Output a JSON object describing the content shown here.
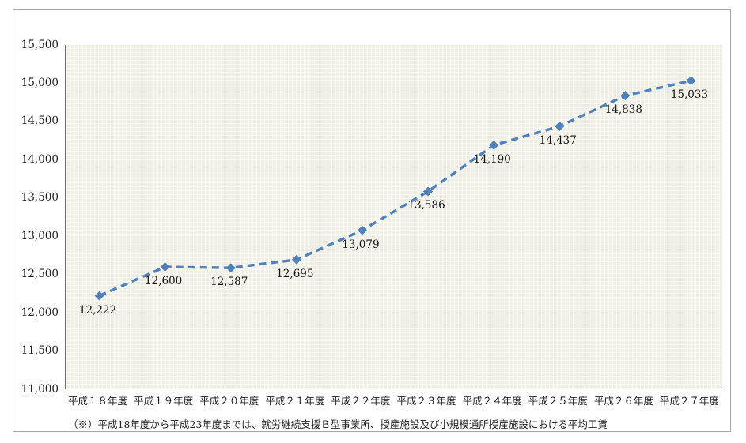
{
  "chart_data": {
    "type": "line",
    "categories": [
      "平成１８年度",
      "平成１９年度",
      "平成２０年度",
      "平成２１年度",
      "平成２２年度",
      "平成２３年度",
      "平成２４年度",
      "平成２５年度",
      "平成２６年度",
      "平成２７年度"
    ],
    "values": [
      12222,
      12600,
      12587,
      12695,
      13079,
      13586,
      14190,
      14437,
      14838,
      15033
    ],
    "point_labels": [
      "12,222",
      "12,600",
      "12,587",
      "12,695",
      "13,079",
      "13,586",
      "14,190",
      "14,437",
      "14,838",
      "15,033"
    ],
    "title": "",
    "xlabel": "",
    "ylabel": "",
    "ylim": [
      11000,
      15500
    ],
    "ytick_step": 500,
    "ytick_labels": [
      "15,500",
      "15,000",
      "14,500",
      "14,000",
      "13,500",
      "13,000",
      "12,500",
      "12,000",
      "11,500",
      "11,000"
    ],
    "grid": false,
    "legend_position": "none",
    "line_style": "dashed",
    "marker": "diamond",
    "line_color": "#4F81BD",
    "plot_bg": "#F0EFE5"
  },
  "footnote": "（※）平成18年度から平成23年度までは、就労継続支援Ｂ型事業所、授産施設及び小規模通所授産施設における平均工賃"
}
